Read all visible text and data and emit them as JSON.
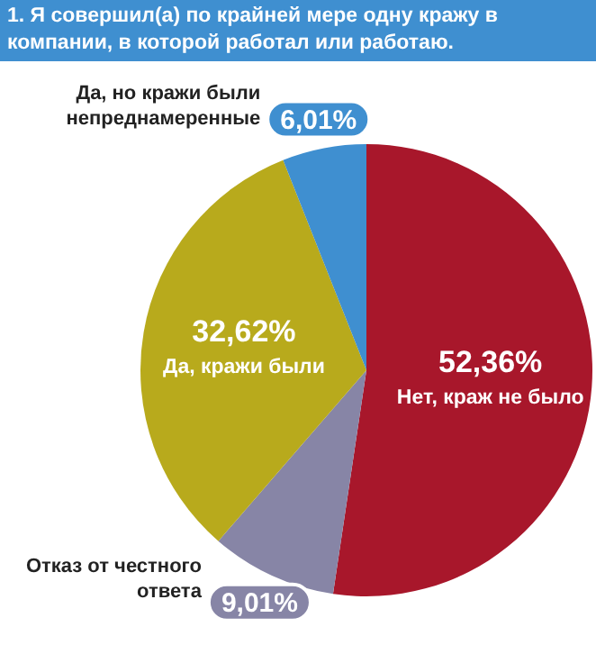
{
  "chart_data": {
    "type": "pie",
    "title": "1. Я совершил(а) по крайней мере одну кражу в компании, в которой работал или работаю.",
    "categories": [
      "Нет, краж не было",
      "Отказ от честного ответа",
      "Да, кражи были",
      "Да, но кражи были непреднамеренные"
    ],
    "values": [
      52.36,
      9.01,
      32.62,
      6.01
    ],
    "value_labels": [
      "52,36%",
      "9,01%",
      "32,62%",
      "6,01%"
    ],
    "colors": [
      "#a8172b",
      "#8785a6",
      "#b8aa1c",
      "#3f8fd0"
    ],
    "legend": false
  }
}
